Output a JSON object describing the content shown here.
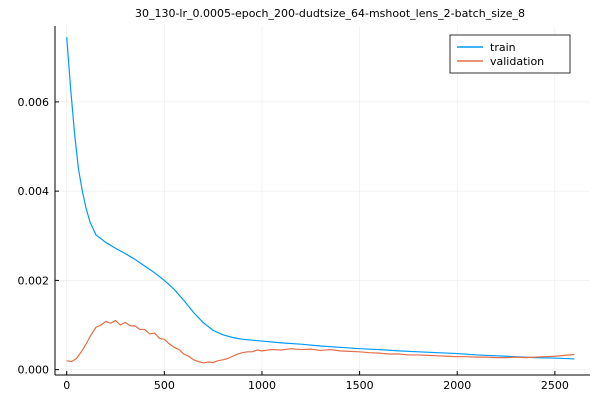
{
  "chart_data": {
    "type": "line",
    "title": "30_130-lr_0.0005-epoch_200-dudtsize_64-mshoot_lens_2-batch_size_8",
    "xlabel": "",
    "ylabel": "",
    "xlim": [
      -60,
      2680
    ],
    "ylim": [
      -0.00012,
      0.0077
    ],
    "x_ticks": [
      0,
      500,
      1000,
      1500,
      2000,
      2500
    ],
    "x_tick_labels": [
      "0",
      "500",
      "1000",
      "1500",
      "2000",
      "2500"
    ],
    "y_ticks": [
      0.0,
      0.002,
      0.004,
      0.006
    ],
    "y_tick_labels": [
      "0.000",
      "0.002",
      "0.004",
      "0.006"
    ],
    "grid": true,
    "legend_position": "top-right",
    "series": [
      {
        "name": "train",
        "color": "#009AFA",
        "x": [
          0,
          20,
          40,
          60,
          80,
          100,
          120,
          150,
          200,
          250,
          300,
          350,
          400,
          450,
          500,
          550,
          600,
          650,
          700,
          750,
          800,
          850,
          900,
          950,
          1000,
          1100,
          1200,
          1300,
          1400,
          1500,
          1600,
          1700,
          1800,
          1900,
          2000,
          2100,
          2200,
          2300,
          2400,
          2500,
          2600
        ],
        "y": [
          0.00745,
          0.0063,
          0.0053,
          0.0045,
          0.004,
          0.0036,
          0.0033,
          0.00302,
          0.00285,
          0.00272,
          0.0026,
          0.00247,
          0.00232,
          0.00217,
          0.002,
          0.0018,
          0.00155,
          0.00128,
          0.00105,
          0.00088,
          0.00078,
          0.00072,
          0.00068,
          0.00066,
          0.00064,
          0.0006,
          0.00057,
          0.00053,
          0.0005,
          0.00047,
          0.00045,
          0.00042,
          0.0004,
          0.00038,
          0.00036,
          0.00033,
          0.00031,
          0.00029,
          0.00027,
          0.00026,
          0.00024
        ]
      },
      {
        "name": "validation",
        "color": "#E26F46",
        "x": [
          0,
          25,
          50,
          75,
          100,
          125,
          150,
          175,
          200,
          225,
          250,
          275,
          300,
          325,
          350,
          375,
          400,
          425,
          450,
          475,
          500,
          525,
          550,
          575,
          600,
          625,
          650,
          675,
          700,
          725,
          750,
          775,
          800,
          825,
          850,
          875,
          900,
          925,
          950,
          975,
          1000,
          1050,
          1100,
          1150,
          1200,
          1250,
          1300,
          1350,
          1400,
          1450,
          1500,
          1550,
          1600,
          1650,
          1700,
          1750,
          1800,
          1850,
          1900,
          1950,
          2000,
          2050,
          2100,
          2150,
          2200,
          2250,
          2300,
          2350,
          2400,
          2450,
          2500,
          2550,
          2600
        ],
        "y": [
          0.0002,
          0.00018,
          0.00025,
          0.0004,
          0.00058,
          0.00078,
          0.00095,
          0.001,
          0.00108,
          0.00104,
          0.0011,
          0.001,
          0.00106,
          0.00098,
          0.00098,
          0.0009,
          0.0009,
          0.0008,
          0.00082,
          0.0007,
          0.00068,
          0.00058,
          0.0005,
          0.00045,
          0.00035,
          0.0003,
          0.00022,
          0.00018,
          0.00015,
          0.00017,
          0.00016,
          0.0002,
          0.00022,
          0.00025,
          0.0003,
          0.00035,
          0.00038,
          0.0004,
          0.0004,
          0.00044,
          0.00042,
          0.00045,
          0.00044,
          0.00047,
          0.00045,
          0.00046,
          0.00043,
          0.00045,
          0.00042,
          0.00041,
          0.0004,
          0.00038,
          0.00037,
          0.00035,
          0.00035,
          0.00033,
          0.00033,
          0.00032,
          0.00031,
          0.0003,
          0.00029,
          0.00029,
          0.00028,
          0.00028,
          0.00027,
          0.00027,
          0.00028,
          0.00027,
          0.00028,
          0.00029,
          0.0003,
          0.00032,
          0.00034
        ]
      }
    ]
  }
}
